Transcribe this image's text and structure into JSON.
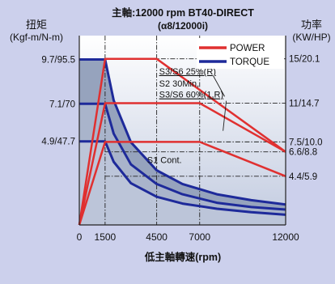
{
  "chart_data": {
    "type": "line",
    "title": "主軸:12000 rpm BT40-DIRECT",
    "subtitle": "(α8/12000i)",
    "xlabel": "低主軸轉速(rpm)",
    "ylabel_left": "扭矩",
    "ylabel_left_unit": "(Kgf-m/N-m)",
    "ylabel_right": "功率",
    "ylabel_right_unit": "(KW/HP)",
    "x_ticks": [
      "0",
      "1500",
      "4500",
      "7000",
      "12000"
    ],
    "x_tick_values": [
      0,
      1500,
      4500,
      7000,
      12000
    ],
    "xlim": [
      0,
      12000
    ],
    "torque_ticks": [
      "9.7/95.5",
      "7.1/70",
      "4.9/47.7"
    ],
    "torque_tick_values": [
      9.7,
      7.1,
      4.9
    ],
    "power_ticks": [
      "15/20.1",
      "11/14.7",
      "7.5/10.0",
      "6.6/8.8",
      "4.4/5.9"
    ],
    "power_tick_values": [
      15,
      11,
      7.5,
      6.6,
      4.4
    ],
    "power_ylim": [
      0,
      17.1
    ],
    "torque_ylim": [
      0,
      11.1
    ],
    "legend": [
      {
        "name": "POWER",
        "color": "#e03030"
      },
      {
        "name": "TORQUE",
        "color": "#1e2a9a"
      }
    ],
    "legend_position": "top-right",
    "grid": false,
    "series": [
      {
        "name": "S3/S6 25%(R)",
        "kind": "power",
        "x": [
          0,
          1500,
          4500,
          12000
        ],
        "y": [
          0,
          15,
          15,
          6.6
        ]
      },
      {
        "name": "S2 30Min, S3/S6 60%(1,R)",
        "kind": "power",
        "x": [
          0,
          1500,
          7000,
          12000
        ],
        "y": [
          0,
          11,
          11,
          6.6
        ]
      },
      {
        "name": "S1 Cont.",
        "kind": "power",
        "x": [
          0,
          1500,
          7000,
          12000
        ],
        "y": [
          0,
          7.5,
          7.5,
          4.4
        ]
      },
      {
        "name": "S3/S6 25%(R)",
        "kind": "torque",
        "x": [
          0,
          1500,
          2000,
          3000,
          4500,
          6000,
          8000,
          10000,
          12000
        ],
        "y": [
          9.7,
          9.7,
          7.3,
          4.85,
          3.2,
          2.4,
          1.8,
          1.45,
          1.2
        ]
      },
      {
        "name": "S2 30Min, S3/S6 60%(1,R)",
        "kind": "torque",
        "x": [
          0,
          1500,
          2000,
          3000,
          4500,
          6000,
          8000,
          10000,
          12000
        ],
        "y": [
          7.1,
          7.1,
          5.35,
          3.55,
          2.4,
          1.8,
          1.3,
          1.05,
          0.9
        ]
      },
      {
        "name": "S1 Cont.",
        "kind": "torque",
        "x": [
          0,
          1500,
          2000,
          3000,
          4500,
          6000,
          8000,
          10000,
          12000
        ],
        "y": [
          4.9,
          4.9,
          3.7,
          2.45,
          1.65,
          1.25,
          0.95,
          0.75,
          0.6
        ]
      }
    ],
    "annotations": [
      {
        "text": "S3/S6 25%(R)",
        "x": 4500,
        "y": 13.6
      },
      {
        "text": "S2 30Min,",
        "x": 4500,
        "y": 12.5
      },
      {
        "text": "S3/S6 60%(1,R)",
        "x": 4500,
        "y": 11.5
      },
      {
        "text": "S1 Cont.",
        "x": 3800,
        "y": 5.6
      }
    ]
  }
}
